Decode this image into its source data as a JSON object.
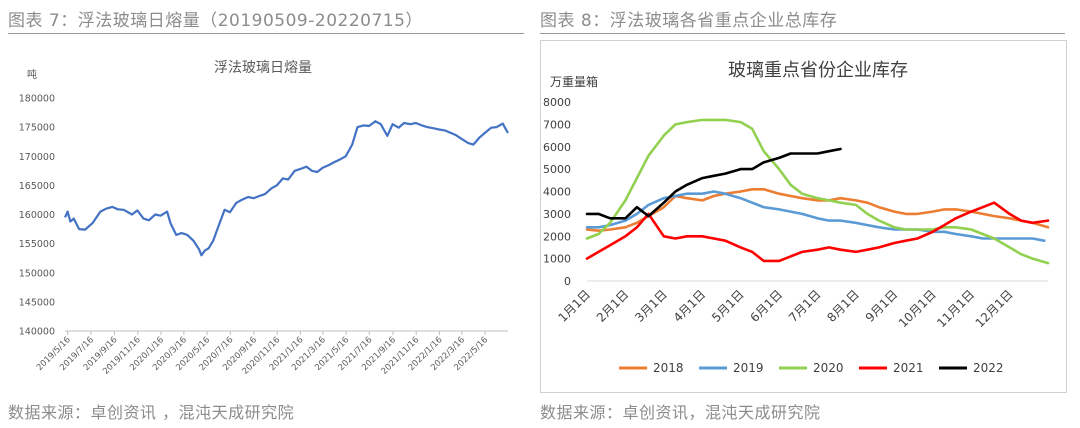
{
  "left_figure": {
    "caption": "图表 7：浮法玻璃日熔量（20190509-20220715）",
    "source": "数据来源：卓创资讯 ，混沌天成研究院"
  },
  "right_figure": {
    "caption": "图表 8：浮法玻璃各省重点企业总库存",
    "source": "数据来源：卓创资讯，混沌天成研究院"
  },
  "colors": {
    "blue": "#4472c4",
    "orange": "#ed7d31",
    "steel": "#5b9bd5",
    "green": "#92d050",
    "red": "#ff0000",
    "black": "#000000",
    "caption_gray": "#8c8c8c"
  },
  "chart_data": [
    {
      "type": "line",
      "title": "浮法玻璃日熔量",
      "ylabel": "吨",
      "ylim": [
        140000,
        180000
      ],
      "yticks": [
        140000,
        145000,
        150000,
        155000,
        160000,
        165000,
        170000,
        175000,
        180000
      ],
      "xlim": [
        "2019/5/9",
        "2022/7/15"
      ],
      "xticks": [
        "2019/5/16",
        "2019/7/16",
        "2019/9/16",
        "2019/11/16",
        "2020/1/16",
        "2020/3/16",
        "2020/5/16",
        "2020/7/16",
        "2020/9/16",
        "2020/11/16",
        "2021/1/16",
        "2021/3/16",
        "2021/5/16",
        "2021/7/16",
        "2021/9/16",
        "2021/11/16",
        "2022/1/16",
        "2022/3/16",
        "2022/5/16"
      ],
      "color": "#4472c4",
      "x": [
        "2019/5/9",
        "2019/5/16",
        "2019/5/23",
        "2019/6/1",
        "2019/6/15",
        "2019/7/1",
        "2019/7/20",
        "2019/8/10",
        "2019/8/25",
        "2019/9/10",
        "2019/9/25",
        "2019/10/10",
        "2019/11/1",
        "2019/11/15",
        "2019/12/1",
        "2019/12/15",
        "2020/1/1",
        "2020/1/15",
        "2020/2/1",
        "2020/2/10",
        "2020/2/25",
        "2020/3/10",
        "2020/3/25",
        "2020/4/10",
        "2020/4/25",
        "2020/5/1",
        "2020/5/10",
        "2020/5/20",
        "2020/6/1",
        "2020/6/15",
        "2020/7/1",
        "2020/7/15",
        "2020/8/1",
        "2020/8/15",
        "2020/9/1",
        "2020/9/15",
        "2020/10/1",
        "2020/10/15",
        "2020/11/1",
        "2020/11/15",
        "2020/12/1",
        "2020/12/15",
        "2021/1/1",
        "2021/1/15",
        "2021/2/1",
        "2021/2/15",
        "2021/3/1",
        "2021/3/15",
        "2021/4/1",
        "2021/4/15",
        "2021/5/1",
        "2021/5/15",
        "2021/6/1",
        "2021/6/15",
        "2021/7/1",
        "2021/7/15",
        "2021/8/1",
        "2021/8/15",
        "2021/9/1",
        "2021/9/15",
        "2021/10/1",
        "2021/10/15",
        "2021/11/1",
        "2021/11/15",
        "2021/12/1",
        "2021/12/15",
        "2022/1/1",
        "2022/1/15",
        "2022/2/1",
        "2022/2/15",
        "2022/3/1",
        "2022/3/15",
        "2022/4/1",
        "2022/4/15",
        "2022/5/1",
        "2022/5/15",
        "2022/6/1",
        "2022/6/15",
        "2022/7/1",
        "2022/7/15"
      ],
      "values": [
        159500,
        160500,
        158800,
        159300,
        157500,
        157400,
        158500,
        160500,
        161000,
        161300,
        160900,
        160800,
        160000,
        160700,
        159300,
        159000,
        160000,
        159800,
        160500,
        158500,
        156500,
        156800,
        156500,
        155500,
        154000,
        153000,
        153800,
        154200,
        155500,
        158000,
        160800,
        160400,
        162000,
        162500,
        163000,
        162800,
        163200,
        163500,
        164500,
        165000,
        166200,
        166000,
        167500,
        167800,
        168200,
        167500,
        167300,
        168000,
        168500,
        169000,
        169500,
        170000,
        172000,
        175000,
        175300,
        175200,
        176000,
        175500,
        173500,
        175500,
        174900,
        175700,
        175500,
        175700,
        175300,
        175000,
        174800,
        174600,
        174400,
        174000,
        173600,
        173000,
        172300,
        172000,
        173200,
        174000,
        174900,
        175000,
        175600,
        174000
      ]
    },
    {
      "type": "line",
      "title": "玻璃重点省份企业库存",
      "ylabel": "万重量箱",
      "ylim": [
        0,
        8000
      ],
      "yticks": [
        0,
        1000,
        2000,
        3000,
        4000,
        5000,
        6000,
        7000,
        8000
      ],
      "xticks": [
        "1月1日",
        "2月1日",
        "3月1日",
        "4月1日",
        "5月1日",
        "6月1日",
        "7月1日",
        "8月1日",
        "9月1日",
        "10月1日",
        "11月1日",
        "12月1日"
      ],
      "xlim": [
        1,
        13
      ],
      "legend": "bottom",
      "series": [
        {
          "name": "2018",
          "color": "#ed7d31",
          "x": [
            1,
            1.3,
            1.6,
            2,
            2.3,
            2.6,
            3,
            3.3,
            3.6,
            4,
            4.3,
            4.6,
            5,
            5.3,
            5.6,
            6,
            6.3,
            6.6,
            7,
            7.3,
            7.6,
            8,
            8.3,
            8.6,
            9,
            9.3,
            9.6,
            10,
            10.3,
            10.6,
            11,
            11.3,
            11.6,
            12,
            12.3,
            12.6,
            13
          ],
          "values": [
            2300,
            2250,
            2300,
            2400,
            2600,
            2900,
            3300,
            3800,
            3700,
            3600,
            3800,
            3900,
            4000,
            4100,
            4100,
            3900,
            3800,
            3700,
            3600,
            3600,
            3700,
            3600,
            3500,
            3300,
            3100,
            3000,
            3000,
            3100,
            3200,
            3200,
            3100,
            3000,
            2900,
            2800,
            2700,
            2600,
            2400
          ]
        },
        {
          "name": "2019",
          "color": "#5b9bd5",
          "x": [
            1,
            1.3,
            1.6,
            2,
            2.3,
            2.6,
            3,
            3.3,
            3.6,
            4,
            4.3,
            4.6,
            5,
            5.3,
            5.6,
            6,
            6.3,
            6.6,
            7,
            7.3,
            7.6,
            8,
            8.3,
            8.6,
            9,
            9.3,
            9.6,
            10,
            10.3,
            10.6,
            11,
            11.3,
            11.6,
            12,
            12.3,
            12.6,
            12.9
          ],
          "values": [
            2400,
            2400,
            2500,
            2700,
            3000,
            3400,
            3700,
            3800,
            3900,
            3900,
            4000,
            3900,
            3700,
            3500,
            3300,
            3200,
            3100,
            3000,
            2800,
            2700,
            2700,
            2600,
            2500,
            2400,
            2300,
            2300,
            2300,
            2200,
            2200,
            2100,
            2000,
            1900,
            1900,
            1900,
            1900,
            1900,
            1800
          ]
        },
        {
          "name": "2020",
          "color": "#92d050",
          "x": [
            1,
            1.3,
            1.6,
            2,
            2.3,
            2.6,
            3,
            3.3,
            3.6,
            4,
            4.3,
            4.6,
            5,
            5.3,
            5.6,
            6,
            6.3,
            6.6,
            7,
            7.3,
            7.6,
            8,
            8.3,
            8.6,
            9,
            9.3,
            9.6,
            10,
            10.3,
            10.6,
            11,
            11.3,
            11.6,
            12,
            12.3,
            12.6,
            13
          ],
          "values": [
            1900,
            2100,
            2600,
            3600,
            4600,
            5600,
            6500,
            7000,
            7100,
            7200,
            7200,
            7200,
            7100,
            6800,
            5800,
            5000,
            4300,
            3900,
            3700,
            3600,
            3500,
            3400,
            3000,
            2700,
            2400,
            2300,
            2300,
            2300,
            2400,
            2400,
            2300,
            2100,
            1900,
            1500,
            1200,
            1000,
            800
          ]
        },
        {
          "name": "2021",
          "color": "#ff0000",
          "x": [
            1,
            1.3,
            1.6,
            2,
            2.3,
            2.6,
            3,
            3.3,
            3.6,
            4,
            4.3,
            4.6,
            5,
            5.3,
            5.6,
            6,
            6.3,
            6.6,
            7,
            7.3,
            7.6,
            8,
            8.3,
            8.6,
            9,
            9.3,
            9.6,
            10,
            10.3,
            10.6,
            11,
            11.3,
            11.6,
            12,
            12.3,
            12.6,
            13
          ],
          "values": [
            1000,
            1300,
            1600,
            2000,
            2400,
            3000,
            2000,
            1900,
            2000,
            2000,
            1900,
            1800,
            1500,
            1300,
            900,
            900,
            1100,
            1300,
            1400,
            1500,
            1400,
            1300,
            1400,
            1500,
            1700,
            1800,
            1900,
            2200,
            2500,
            2800,
            3100,
            3300,
            3500,
            3000,
            2700,
            2600,
            2700
          ]
        },
        {
          "name": "2022",
          "color": "#000000",
          "x": [
            1,
            1.3,
            1.6,
            2,
            2.3,
            2.6,
            3,
            3.3,
            3.6,
            4,
            4.3,
            4.6,
            5,
            5.3,
            5.6,
            6,
            6.3,
            6.6,
            7,
            7.3,
            7.6
          ],
          "values": [
            3000,
            3000,
            2800,
            2800,
            3300,
            2900,
            3500,
            4000,
            4300,
            4600,
            4700,
            4800,
            5000,
            5000,
            5300,
            5500,
            5700,
            5700,
            5700,
            5800,
            5900
          ]
        }
      ]
    }
  ]
}
